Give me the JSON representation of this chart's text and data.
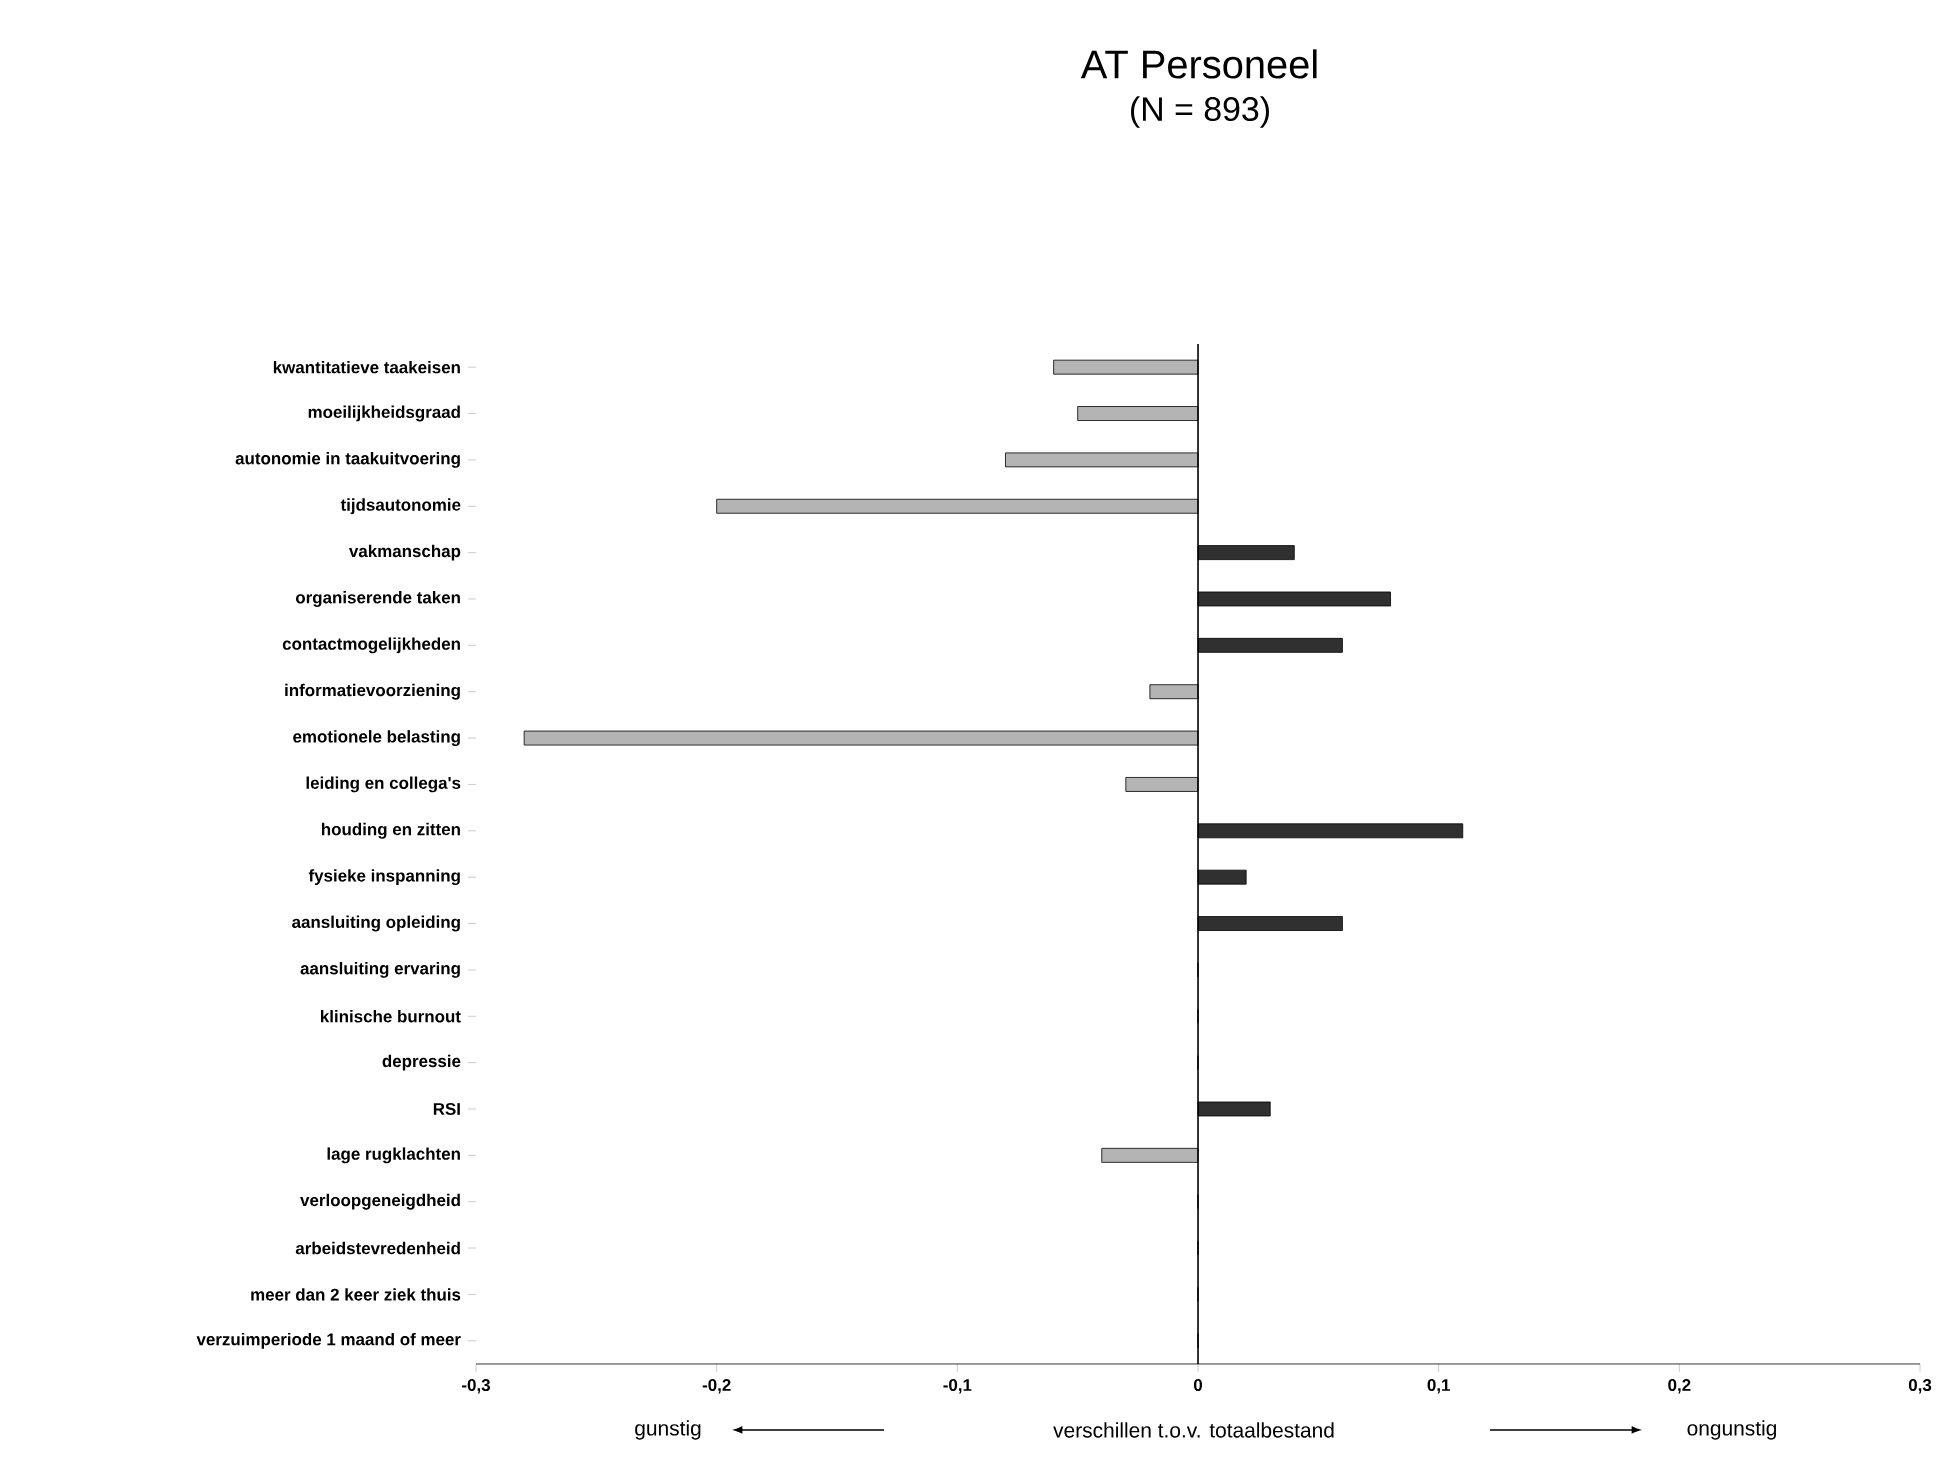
{
  "chart_data": {
    "type": "bar",
    "orientation": "horizontal",
    "title": "AT Personeel",
    "subtitle": "(N =  893)",
    "xlabel": "verschillen t.o.v. totaalbestand",
    "annotations": [
      "gunstig",
      "ongunstig"
    ],
    "categories": [
      "kwantitatieve taakeisen",
      "moeilijkheidsgraad",
      "autonomie in taakuitvoering",
      "tijdsautonomie",
      "vakmanschap",
      "organiserende taken",
      "contactmogelijkheden",
      "informatievoorziening",
      "emotionele belasting",
      "leiding en collega's",
      "houding en zitten",
      "fysieke inspanning",
      "aansluiting opleiding",
      "aansluiting ervaring",
      "klinische burnout",
      "depressie",
      "RSI",
      "lage rugklachten",
      "verloopgeneigdheid",
      "arbeidstevredenheid",
      "meer dan 2 keer ziek thuis",
      "verzuimperiode 1 maand of meer"
    ],
    "values": [
      -0.06,
      -0.05,
      -0.08,
      -0.2,
      0.04,
      0.08,
      0.06,
      -0.02,
      -0.28,
      -0.03,
      0.11,
      0.02,
      0.06,
      0,
      0,
      0,
      0.03,
      -0.04,
      0,
      0,
      0,
      0
    ],
    "colors": [
      "#b4b4b4",
      "#b4b4b4",
      "#b4b4b4",
      "#b4b4b4",
      "#303030",
      "#303030",
      "#303030",
      "#b4b4b4",
      "#b4b4b4",
      "#b4b4b4",
      "#303030",
      "#303030",
      "#303030",
      "#303030",
      "#303030",
      "#303030",
      "#303030",
      "#b4b4b4",
      "#303030",
      "#303030",
      "#303030",
      "#303030"
    ],
    "xlim": [
      -0.3,
      0.3
    ],
    "xticks": [
      {
        "value": -0.3,
        "label": "-0,3"
      },
      {
        "value": -0.2,
        "label": "-0,2"
      },
      {
        "value": -0.1,
        "label": "-0,1"
      },
      0,
      {
        "value": 0.1,
        "label": "0,1"
      },
      {
        "value": 0.2,
        "label": "0,2"
      },
      {
        "value": 0.3,
        "label": "0,3"
      }
    ]
  }
}
